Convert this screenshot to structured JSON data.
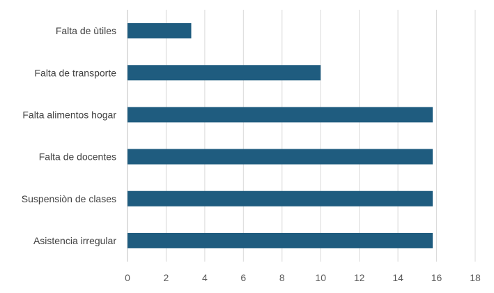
{
  "chart_data": {
    "type": "bar",
    "orientation": "horizontal",
    "categories": [
      "Falta de ùtiles",
      "Falta de transporte",
      "Falta alimentos hogar",
      "Falta de docentes",
      "Suspensiòn de clases",
      "Asistencia irregular"
    ],
    "values": [
      3.3,
      10.0,
      15.8,
      15.8,
      15.8,
      15.8
    ],
    "xticks": [
      "0",
      "2",
      "4",
      "6",
      "8",
      "10",
      "12",
      "14",
      "16",
      "18"
    ],
    "xlim": [
      0,
      18
    ],
    "grid": "vertical",
    "legend": "none",
    "title": "",
    "xlabel": "",
    "ylabel": "",
    "colors": {
      "bar": "#1f5c7f",
      "grid": "#d9d9d9",
      "axis": "#bfbfbf"
    }
  }
}
